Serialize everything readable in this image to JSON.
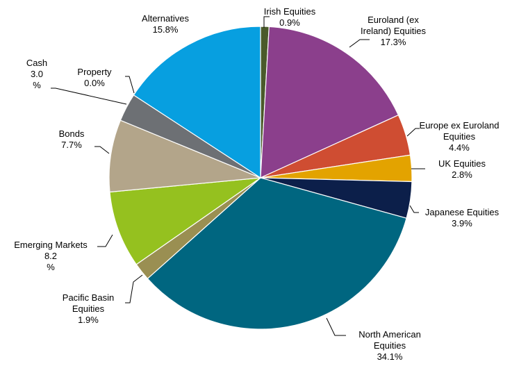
{
  "chart_data": {
    "type": "pie",
    "title": "",
    "unit": "%",
    "slices": [
      {
        "label": "Irish Equities",
        "value": 0.9,
        "display": [
          "Irish Equities",
          "0.9%"
        ],
        "color": "#4a5a2a"
      },
      {
        "label": "Euroland (ex Ireland) Equities",
        "value": 17.3,
        "display": [
          "Euroland (ex",
          "Ireland) Equities",
          "17.3%"
        ],
        "color": "#8b3f8c"
      },
      {
        "label": "Europe ex Euroland Equities",
        "value": 4.4,
        "display": [
          "Europe ex Euroland",
          "Equities",
          "4.4%"
        ],
        "color": "#cf4d32"
      },
      {
        "label": "UK Equities",
        "value": 2.8,
        "display": [
          "UK Equities",
          "2.8%"
        ],
        "color": "#e3a300"
      },
      {
        "label": "Japanese Equities",
        "value": 3.9,
        "display": [
          "Japanese Equities",
          "3.9%"
        ],
        "color": "#0c1f4a"
      },
      {
        "label": "North American Equities",
        "value": 34.1,
        "display": [
          "North American",
          "Equities",
          "34.1%"
        ],
        "color": "#006680"
      },
      {
        "label": "Pacific Basin Equities",
        "value": 1.9,
        "display": [
          "Pacific Basin",
          "Equities",
          "1.9%"
        ],
        "color": "#9a8f52"
      },
      {
        "label": "Emerging Markets",
        "value": 8.2,
        "display": [
          "Emerging Markets",
          "8.2",
          "%"
        ],
        "color": "#95c11f"
      },
      {
        "label": "Bonds",
        "value": 7.7,
        "display": [
          "Bonds",
          "7.7%"
        ],
        "color": "#b3a58a"
      },
      {
        "label": "Cash",
        "value": 3.0,
        "display": [
          "Cash",
          "3.0",
          "%"
        ],
        "color": "#6d7074"
      },
      {
        "label": "Property",
        "value": 0.0,
        "display": [
          "Property",
          "0.0%"
        ],
        "color": "#c7c7c7"
      },
      {
        "label": "Alternatives",
        "value": 15.8,
        "display": [
          "Alternatives",
          "15.8%"
        ],
        "color": "#079fe0"
      }
    ]
  }
}
